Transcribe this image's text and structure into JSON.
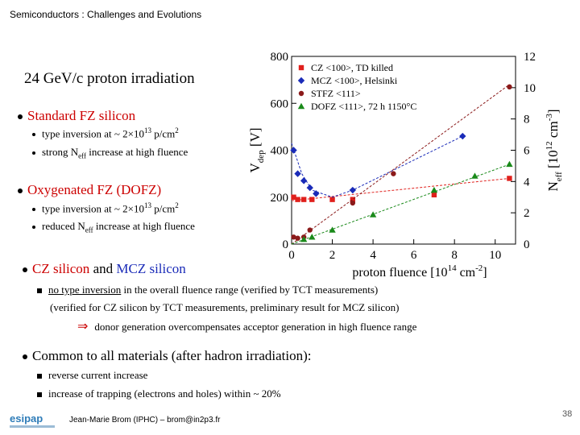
{
  "header": "Semiconductors : Challenges and Evolutions",
  "title": "24 GeV/c proton irradiation",
  "standard": {
    "heading": "Standard FZ silicon",
    "item1_prefix": "type inversion at  ~ 2×10",
    "item1_exp": "13",
    "item1_suffix": " p/cm",
    "item1_sup": "2",
    "item2_prefix": "strong N",
    "item2_sub": "eff",
    "item2_suffix": " increase at high fluence"
  },
  "oxygenated": {
    "heading": "Oxygenated FZ (DOFZ)",
    "item1_prefix": "type inversion at  ~ 2×10",
    "item1_exp": "13",
    "item1_suffix": " p/cm",
    "item1_sup": "2",
    "item2_prefix": "reduced N",
    "item2_sub": "eff",
    "item2_suffix": " increase at high fluence"
  },
  "cz": {
    "heading_a": "CZ silicon",
    "heading_and": " and ",
    "heading_b": "MCZ silicon",
    "line1_underlined": "no type inversion",
    "line1_rest": " in the overall fluence range  (verified by TCT measurements)",
    "line2": "(verified for CZ silicon by TCT measurements,  preliminary result for MCZ silicon)",
    "line3_arrow": "⇒",
    "line3": "donor generation overcompensates acceptor generation in high fluence range"
  },
  "common": {
    "heading": "Common to all materials (after hadron irradiation):",
    "item1": "reverse current increase",
    "item2": "increase of trapping (electrons and holes) within ~ 20%"
  },
  "footer": {
    "author": "Jean-Marie Brom (IPHC) – brom@in2p3.fr",
    "page": "38",
    "logo": "esipap"
  },
  "chart_data": {
    "type": "scatter",
    "x_label": "proton fluence [10",
    "x_label_exp": "14",
    "x_label_unit": " cm",
    "x_label_unit_exp": "-2",
    "x_label_close": "]",
    "y_label_left": "V",
    "y_label_left_sub": "dep",
    "y_label_left_unit": " [V]",
    "y_label_right": "N",
    "y_label_right_sub": "eff",
    "y_label_right_unit": " [10",
    "y_label_right_exp": "12",
    "y_label_right_unit2": " cm",
    "y_label_right_exp2": "-3",
    "y_label_right_close": "]",
    "x_range": [
      0,
      11
    ],
    "y_left_range": [
      0,
      800
    ],
    "y_right_range": [
      0,
      12
    ],
    "x_ticks": [
      "0",
      "2",
      "4",
      "6",
      "8",
      "10"
    ],
    "y_left_ticks": [
      "0",
      "200",
      "400",
      "600",
      "800"
    ],
    "y_right_ticks": [
      "0",
      "2",
      "4",
      "6",
      "8",
      "10",
      "12"
    ],
    "series": [
      {
        "name": "CZ <100>, TD killed",
        "color": "#e0201c",
        "marker": "square",
        "points": [
          [
            0.1,
            200
          ],
          [
            0.3,
            190
          ],
          [
            0.6,
            190
          ],
          [
            1.0,
            190
          ],
          [
            2.0,
            190
          ],
          [
            3.0,
            190
          ],
          [
            7.0,
            210
          ],
          [
            10.7,
            280
          ]
        ],
        "line": [
          [
            0,
            185
          ],
          [
            10.7,
            280
          ]
        ]
      },
      {
        "name": "MCZ <100>, Helsinki",
        "color": "#1a2bb8",
        "marker": "diamond",
        "points": [
          [
            0.1,
            400
          ],
          [
            0.3,
            300
          ],
          [
            0.6,
            270
          ],
          [
            0.9,
            240
          ],
          [
            1.2,
            215
          ],
          [
            3.0,
            230
          ],
          [
            8.4,
            460
          ]
        ],
        "line": [
          [
            0,
            430
          ],
          [
            0.5,
            300
          ],
          [
            1.0,
            230
          ],
          [
            2.0,
            200
          ],
          [
            3.0,
            230
          ],
          [
            8.4,
            460
          ]
        ]
      },
      {
        "name": "STFZ <111>",
        "color": "#8b1a1a",
        "marker": "circle",
        "points": [
          [
            0.1,
            30
          ],
          [
            0.3,
            25
          ],
          [
            0.6,
            30
          ],
          [
            0.9,
            60
          ],
          [
            3.0,
            175
          ],
          [
            5.0,
            300
          ],
          [
            10.7,
            670
          ]
        ],
        "line": [
          [
            0,
            0
          ],
          [
            10.7,
            680
          ]
        ]
      },
      {
        "name": "DOFZ <111>, 72 h 1150°C",
        "color": "#1a8a1a",
        "marker": "triangle",
        "points": [
          [
            0.6,
            20
          ],
          [
            1.0,
            30
          ],
          [
            2.0,
            60
          ],
          [
            4.0,
            125
          ],
          [
            7.0,
            230
          ],
          [
            9.0,
            290
          ],
          [
            10.7,
            340
          ]
        ],
        "line": [
          [
            0,
            0
          ],
          [
            10.7,
            340
          ]
        ]
      }
    ]
  }
}
